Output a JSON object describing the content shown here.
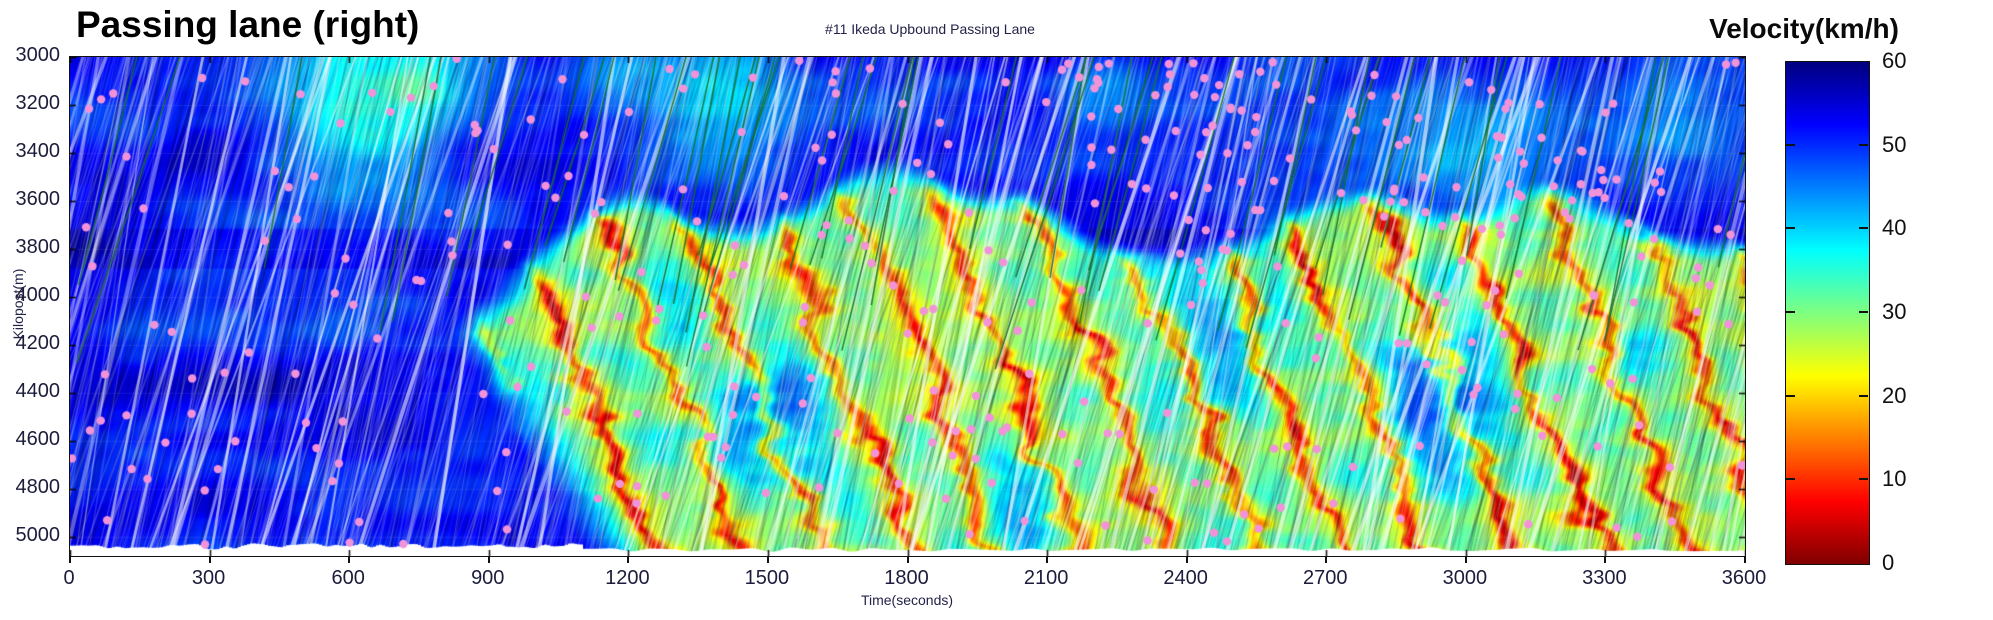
{
  "title": "Passing lane (right)",
  "subtitle": "#11 Ikeda Upbound Passing Lane",
  "axes": {
    "x": {
      "label": "Time(seconds)",
      "min": 0,
      "max": 3600,
      "ticks": [
        0,
        300,
        600,
        900,
        1200,
        1500,
        1800,
        2100,
        2400,
        2700,
        3000,
        3300,
        3600
      ]
    },
    "y": {
      "label": "Kilopost(m)",
      "min": 3000,
      "max": 5080,
      "inverted": true,
      "ticks": [
        3000,
        3200,
        3400,
        3600,
        3800,
        4000,
        4200,
        4400,
        4600,
        4800,
        5000
      ]
    }
  },
  "colorbar": {
    "label": "Velocity(km/h)",
    "min": 0,
    "max": 60,
    "ticks": [
      60,
      50,
      40,
      30,
      20,
      10,
      0
    ],
    "colormap": "jet_reversed_high_is_dark_blue",
    "stops": [
      {
        "value": 60,
        "color": "#000080"
      },
      {
        "value": 50,
        "color": "#0029ff"
      },
      {
        "value": 40,
        "color": "#00d5ff"
      },
      {
        "value": 30,
        "color": "#80ff80"
      },
      {
        "value": 20,
        "color": "#ffd500"
      },
      {
        "value": 10,
        "color": "#ff2b00"
      },
      {
        "value": 0,
        "color": "#800000"
      }
    ]
  },
  "chart_data": {
    "type": "heatmap",
    "title": "Passing lane (right)",
    "subtitle": "#11 Ikeda Upbound Passing Lane",
    "xlabel": "Time(seconds)",
    "ylabel": "Kilopost(m)",
    "zlabel": "Velocity(km/h)",
    "xlim": [
      0,
      3600
    ],
    "ylim": [
      3000,
      5080
    ],
    "zlim": [
      0,
      60
    ],
    "y_axis_inverted": true,
    "velocity_grid": {
      "time_bin_centers_s": [
        150,
        450,
        750,
        1050,
        1350,
        1650,
        1950,
        2250,
        2550,
        2850,
        3150,
        3450
      ],
      "kilopost_bin_centers_m": [
        3130,
        3390,
        3650,
        3910,
        4170,
        4430,
        4690,
        4950
      ],
      "values_kmh": [
        [
          55,
          54,
          50,
          53,
          52,
          51,
          49,
          51,
          50,
          51,
          47,
          49
        ],
        [
          54,
          52,
          47,
          52,
          51,
          49,
          47,
          49,
          49,
          46,
          44,
          46
        ],
        [
          52,
          50,
          49,
          48,
          43,
          41,
          44,
          43,
          44,
          41,
          38,
          40
        ],
        [
          52,
          50,
          47,
          35,
          28,
          30,
          26,
          28,
          29,
          26,
          23,
          26
        ],
        [
          53,
          51,
          50,
          24,
          21,
          27,
          19,
          21,
          24,
          19,
          17,
          19
        ],
        [
          53,
          52,
          50,
          40,
          23,
          21,
          17,
          21,
          19,
          17,
          19,
          17
        ],
        [
          53,
          52,
          52,
          46,
          28,
          23,
          19,
          17,
          21,
          19,
          17,
          19
        ],
        [
          53,
          52,
          52,
          49,
          33,
          26,
          21,
          19,
          23,
          21,
          19,
          21
        ]
      ]
    },
    "congestion": {
      "onset_time_s": 840,
      "onset_kilopost_m": 4150,
      "upstream_wave_speed_m_per_s": 4.66,
      "wave_period_s": 186,
      "congested_upper_boundary_kilopost_m": 3850,
      "congested_extent_kilopost_m": [
        3850,
        5080
      ]
    },
    "overlays": {
      "vehicle_trajectories": "dense thin diagonal streaks (navy/white), slope up-right",
      "probe_trajectories": {
        "color": "#147028",
        "count_estimate": 50
      },
      "scatter_points": {
        "color": "#f293d9",
        "count_estimate": 360,
        "marker": "filled-circle"
      },
      "free_flow_velocity_kmh": 52,
      "bottom_data_edge": "ragged white gap above x-axis"
    }
  }
}
